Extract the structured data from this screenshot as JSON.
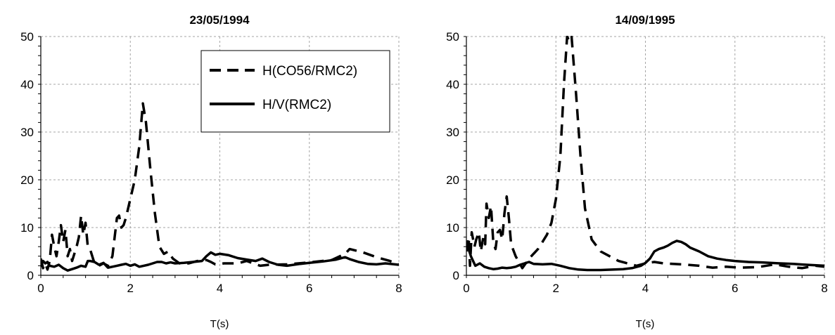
{
  "chart_data": [
    {
      "type": "line",
      "title": "23/05/1994",
      "xlabel": "T(s)",
      "ylabel": "",
      "xlim": [
        0,
        8
      ],
      "ylim": [
        0,
        50
      ],
      "xticks": [
        "0",
        "2",
        "4",
        "6",
        "8"
      ],
      "yticks": [
        "0",
        "10",
        "20",
        "30",
        "40",
        "50"
      ],
      "grid": true,
      "legend_position": "top-right",
      "series": [
        {
          "name": "H(CO56/RMC2)",
          "style": "dashed",
          "color": "#000000",
          "points": [
            [
              0.0,
              3.5
            ],
            [
              0.05,
              1.5
            ],
            [
              0.1,
              2.5
            ],
            [
              0.15,
              1.2
            ],
            [
              0.2,
              3.0
            ],
            [
              0.25,
              8.5
            ],
            [
              0.3,
              6.0
            ],
            [
              0.35,
              4.0
            ],
            [
              0.4,
              7.0
            ],
            [
              0.45,
              10.5
            ],
            [
              0.5,
              7.0
            ],
            [
              0.55,
              9.5
            ],
            [
              0.6,
              4.0
            ],
            [
              0.65,
              5.5
            ],
            [
              0.7,
              3.0
            ],
            [
              0.75,
              4.5
            ],
            [
              0.8,
              6.0
            ],
            [
              0.85,
              8.0
            ],
            [
              0.9,
              12.5
            ],
            [
              0.95,
              8.5
            ],
            [
              1.0,
              11.0
            ],
            [
              1.05,
              6.0
            ],
            [
              1.1,
              5.5
            ],
            [
              1.2,
              2.5
            ],
            [
              1.3,
              2.0
            ],
            [
              1.4,
              2.5
            ],
            [
              1.5,
              2.0
            ],
            [
              1.6,
              4.0
            ],
            [
              1.65,
              8.0
            ],
            [
              1.7,
              12.0
            ],
            [
              1.75,
              12.5
            ],
            [
              1.8,
              10.0
            ],
            [
              1.85,
              10.5
            ],
            [
              1.9,
              12.0
            ],
            [
              2.0,
              16.0
            ],
            [
              2.1,
              20.0
            ],
            [
              2.2,
              27.0
            ],
            [
              2.28,
              36.0
            ],
            [
              2.35,
              32.0
            ],
            [
              2.45,
              22.0
            ],
            [
              2.55,
              13.0
            ],
            [
              2.65,
              6.0
            ],
            [
              2.75,
              4.5
            ],
            [
              2.85,
              5.0
            ],
            [
              2.95,
              3.5
            ],
            [
              3.1,
              2.5
            ],
            [
              3.3,
              2.5
            ],
            [
              3.5,
              3.0
            ],
            [
              3.7,
              3.2
            ],
            [
              3.8,
              2.8
            ],
            [
              3.9,
              2.3
            ],
            [
              4.1,
              2.5
            ],
            [
              4.4,
              2.5
            ],
            [
              4.6,
              3.0
            ],
            [
              4.75,
              2.5
            ],
            [
              4.9,
              2.0
            ],
            [
              5.1,
              2.2
            ],
            [
              5.5,
              2.3
            ],
            [
              6.0,
              2.7
            ],
            [
              6.5,
              3.2
            ],
            [
              6.8,
              4.5
            ],
            [
              6.9,
              5.5
            ],
            [
              7.2,
              4.8
            ],
            [
              7.5,
              3.8
            ],
            [
              7.8,
              3.0
            ],
            [
              8.0,
              2.3
            ]
          ]
        },
        {
          "name": "H/V(RMC2)",
          "style": "solid",
          "color": "#000000",
          "points": [
            [
              0.0,
              1.8
            ],
            [
              0.05,
              3.0
            ],
            [
              0.1,
              2.5
            ],
            [
              0.15,
              2.8
            ],
            [
              0.2,
              2.0
            ],
            [
              0.3,
              1.8
            ],
            [
              0.4,
              2.2
            ],
            [
              0.5,
              1.5
            ],
            [
              0.6,
              1.0
            ],
            [
              0.7,
              1.3
            ],
            [
              0.8,
              1.6
            ],
            [
              0.9,
              2.0
            ],
            [
              1.0,
              1.8
            ],
            [
              1.05,
              3.0
            ],
            [
              1.1,
              3.0
            ],
            [
              1.2,
              2.8
            ],
            [
              1.3,
              2.2
            ],
            [
              1.4,
              2.6
            ],
            [
              1.5,
              1.6
            ],
            [
              1.6,
              1.8
            ],
            [
              1.7,
              2.0
            ],
            [
              1.8,
              2.2
            ],
            [
              1.9,
              2.4
            ],
            [
              2.0,
              2.0
            ],
            [
              2.1,
              2.3
            ],
            [
              2.2,
              1.8
            ],
            [
              2.3,
              2.0
            ],
            [
              2.4,
              2.2
            ],
            [
              2.5,
              2.5
            ],
            [
              2.6,
              2.8
            ],
            [
              2.7,
              2.8
            ],
            [
              2.8,
              2.5
            ],
            [
              2.9,
              2.7
            ],
            [
              3.0,
              2.5
            ],
            [
              3.2,
              2.6
            ],
            [
              3.4,
              2.8
            ],
            [
              3.6,
              3.0
            ],
            [
              3.7,
              4.0
            ],
            [
              3.8,
              4.8
            ],
            [
              3.9,
              4.3
            ],
            [
              4.0,
              4.5
            ],
            [
              4.2,
              4.2
            ],
            [
              4.4,
              3.6
            ],
            [
              4.6,
              3.3
            ],
            [
              4.8,
              3.0
            ],
            [
              4.95,
              3.5
            ],
            [
              5.1,
              2.8
            ],
            [
              5.3,
              2.2
            ],
            [
              5.5,
              2.0
            ],
            [
              5.8,
              2.4
            ],
            [
              6.0,
              2.6
            ],
            [
              6.3,
              2.9
            ],
            [
              6.6,
              3.3
            ],
            [
              6.8,
              3.8
            ],
            [
              6.9,
              3.4
            ],
            [
              7.1,
              2.8
            ],
            [
              7.3,
              2.4
            ],
            [
              7.5,
              2.3
            ],
            [
              7.7,
              2.5
            ],
            [
              8.0,
              2.2
            ]
          ]
        }
      ]
    },
    {
      "type": "line",
      "title": "14/09/1995",
      "xlabel": "T(s)",
      "ylabel": "",
      "xlim": [
        0,
        8
      ],
      "ylim": [
        0,
        50
      ],
      "xticks": [
        "0",
        "2",
        "4",
        "6",
        "8"
      ],
      "yticks": [
        "0",
        "10",
        "20",
        "30",
        "40",
        "50"
      ],
      "grid": true,
      "series": [
        {
          "name": "H(CO56/RMC2)",
          "style": "dashed",
          "color": "#000000",
          "points": [
            [
              0.0,
              5.0
            ],
            [
              0.05,
              8.0
            ],
            [
              0.08,
              2.0
            ],
            [
              0.12,
              9.0
            ],
            [
              0.18,
              6.0
            ],
            [
              0.22,
              7.5
            ],
            [
              0.28,
              9.0
            ],
            [
              0.32,
              5.0
            ],
            [
              0.38,
              8.0
            ],
            [
              0.42,
              6.5
            ],
            [
              0.45,
              15.0
            ],
            [
              0.5,
              12.0
            ],
            [
              0.55,
              14.5
            ],
            [
              0.6,
              7.0
            ],
            [
              0.65,
              5.5
            ],
            [
              0.7,
              9.0
            ],
            [
              0.75,
              9.5
            ],
            [
              0.8,
              7.5
            ],
            [
              0.85,
              13.0
            ],
            [
              0.9,
              16.5
            ],
            [
              0.95,
              12.0
            ],
            [
              1.0,
              6.5
            ],
            [
              1.1,
              4.0
            ],
            [
              1.25,
              1.5
            ],
            [
              1.4,
              3.5
            ],
            [
              1.5,
              4.5
            ],
            [
              1.6,
              5.5
            ],
            [
              1.7,
              7.0
            ],
            [
              1.8,
              8.5
            ],
            [
              1.9,
              11.0
            ],
            [
              2.0,
              16.0
            ],
            [
              2.1,
              25.0
            ],
            [
              2.18,
              40.0
            ],
            [
              2.25,
              50.0
            ],
            [
              2.3,
              49.0
            ],
            [
              2.35,
              50.0
            ],
            [
              2.45,
              38.0
            ],
            [
              2.55,
              25.0
            ],
            [
              2.65,
              14.0
            ],
            [
              2.8,
              7.5
            ],
            [
              3.0,
              5.0
            ],
            [
              3.2,
              4.0
            ],
            [
              3.4,
              3.0
            ],
            [
              3.6,
              2.5
            ],
            [
              3.8,
              2.0
            ],
            [
              4.0,
              2.5
            ],
            [
              4.2,
              2.8
            ],
            [
              4.4,
              2.5
            ],
            [
              4.8,
              2.3
            ],
            [
              5.2,
              2.0
            ],
            [
              5.5,
              1.6
            ],
            [
              5.8,
              1.8
            ],
            [
              6.1,
              1.6
            ],
            [
              6.5,
              1.7
            ],
            [
              6.9,
              2.3
            ],
            [
              7.2,
              1.8
            ],
            [
              7.5,
              1.5
            ],
            [
              7.8,
              2.0
            ],
            [
              8.0,
              1.8
            ]
          ]
        },
        {
          "name": "H/V(RMC2)",
          "style": "solid",
          "color": "#000000",
          "points": [
            [
              0.0,
              7.0
            ],
            [
              0.05,
              5.5
            ],
            [
              0.1,
              4.0
            ],
            [
              0.15,
              3.0
            ],
            [
              0.2,
              2.0
            ],
            [
              0.3,
              2.5
            ],
            [
              0.4,
              1.8
            ],
            [
              0.5,
              1.5
            ],
            [
              0.6,
              1.3
            ],
            [
              0.7,
              1.4
            ],
            [
              0.8,
              1.6
            ],
            [
              0.9,
              1.5
            ],
            [
              1.0,
              1.6
            ],
            [
              1.1,
              1.8
            ],
            [
              1.2,
              2.2
            ],
            [
              1.3,
              2.5
            ],
            [
              1.4,
              2.8
            ],
            [
              1.5,
              2.4
            ],
            [
              1.7,
              2.3
            ],
            [
              1.9,
              2.4
            ],
            [
              2.1,
              2.0
            ],
            [
              2.3,
              1.5
            ],
            [
              2.5,
              1.2
            ],
            [
              2.7,
              1.1
            ],
            [
              3.0,
              1.1
            ],
            [
              3.3,
              1.2
            ],
            [
              3.5,
              1.3
            ],
            [
              3.7,
              1.5
            ],
            [
              3.9,
              2.0
            ],
            [
              4.0,
              2.6
            ],
            [
              4.1,
              3.5
            ],
            [
              4.2,
              5.0
            ],
            [
              4.3,
              5.5
            ],
            [
              4.4,
              5.8
            ],
            [
              4.5,
              6.2
            ],
            [
              4.6,
              6.8
            ],
            [
              4.7,
              7.2
            ],
            [
              4.8,
              7.0
            ],
            [
              4.9,
              6.5
            ],
            [
              5.0,
              5.8
            ],
            [
              5.2,
              5.0
            ],
            [
              5.4,
              4.0
            ],
            [
              5.6,
              3.5
            ],
            [
              5.8,
              3.2
            ],
            [
              6.0,
              3.0
            ],
            [
              6.3,
              2.8
            ],
            [
              6.6,
              2.7
            ],
            [
              7.0,
              2.5
            ],
            [
              7.3,
              2.4
            ],
            [
              7.6,
              2.2
            ],
            [
              8.0,
              2.0
            ]
          ]
        }
      ]
    }
  ]
}
